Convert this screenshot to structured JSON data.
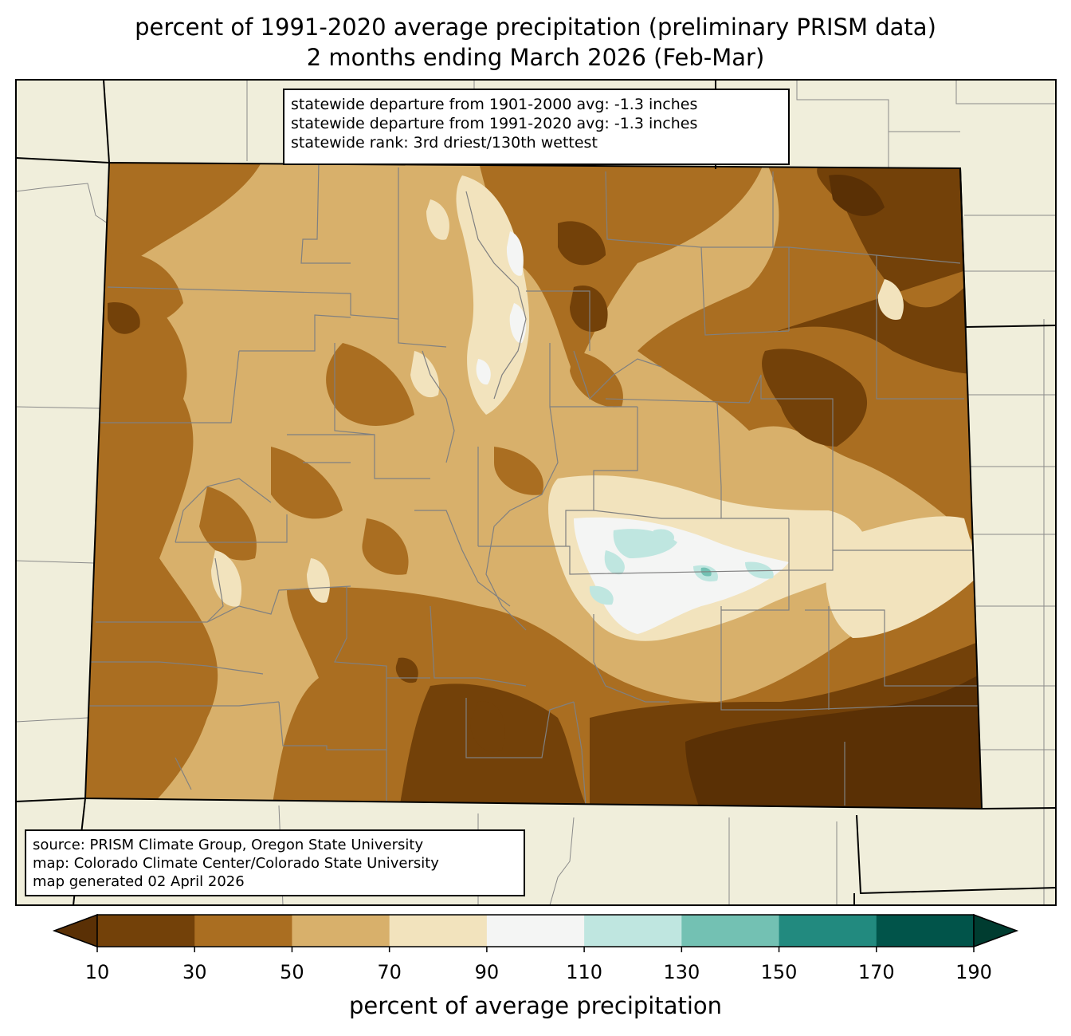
{
  "title_line1": "percent of 1991-2020 average precipitation (preliminary PRISM data)",
  "title_line2": "2 months ending March 2026 (Feb-Mar)",
  "stats": [
    "statewide departure from 1901-2000 avg: -1.3 inches",
    "statewide departure from 1991-2020 avg: -1.3 inches",
    "statewide rank: 3rd driest/130th wettest"
  ],
  "source": [
    "source: PRISM Climate Group, Oregon State University",
    "map: Colorado Climate Center/Colorado State University",
    "map generated 02 April 2026"
  ],
  "colorbar": {
    "label": "percent of average precipitation",
    "ticks": [
      "10",
      "30",
      "50",
      "70",
      "90",
      "110",
      "130",
      "150",
      "170",
      "190"
    ],
    "colors": [
      "#5a3005",
      "#734109",
      "#aa6e21",
      "#d8b06b",
      "#f2e3bd",
      "#f4f5f4",
      "#bfe6e0",
      "#73c1b3",
      "#228a7f",
      "#01544a",
      "#003c30"
    ]
  },
  "colors": {
    "background_land": "#f0eedb",
    "county_lines": "#808080",
    "state_lines": "#000000"
  }
}
